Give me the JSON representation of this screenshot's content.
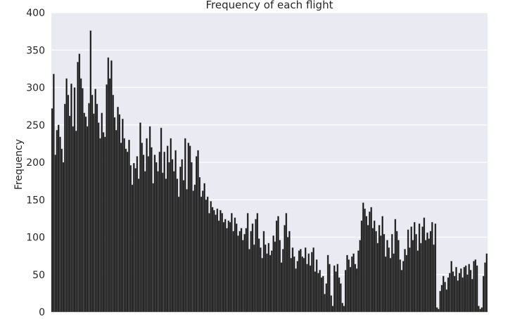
{
  "chart_data": {
    "type": "bar",
    "title": "Frequency of each flight",
    "xlabel": "",
    "ylabel": "Frequency",
    "ylim": [
      0,
      400
    ],
    "yticks": [
      0,
      50,
      100,
      150,
      200,
      250,
      300,
      350,
      400
    ],
    "xtick_labels": "none",
    "grid": "horizontal",
    "legend": "none",
    "colors": {
      "plot_background": "#EAEAF2",
      "grid": "#FFFFFF",
      "bar_fill": "#111111",
      "bar_edge": "#8C8C8C"
    },
    "series": [
      {
        "values": [
          272,
          318,
          210,
          243,
          250,
          234,
          218,
          200,
          278,
          312,
          290,
          262,
          305,
          248,
          300,
          242,
          334,
          345,
          312,
          299,
          266,
          261,
          248,
          279,
          376,
          290,
          265,
          298,
          278,
          253,
          232,
          266,
          240,
          234,
          304,
          340,
          312,
          336,
          290,
          260,
          243,
          274,
          264,
          226,
          258,
          232,
          218,
          214,
          230,
          196,
          170,
          199,
          192,
          208,
          178,
          253,
          226,
          210,
          188,
          232,
          208,
          248,
          220,
          172,
          210,
          200,
          188,
          214,
          246,
          186,
          214,
          178,
          222,
          200,
          232,
          204,
          188,
          216,
          178,
          154,
          194,
          204,
          176,
          232,
          164,
          226,
          222,
          200,
          162,
          170,
          208,
          216,
          180,
          154,
          162,
          172,
          150,
          154,
          132,
          148,
          140,
          136,
          130,
          138,
          122,
          136,
          132,
          120,
          124,
          112,
          122,
          120,
          132,
          108,
          126,
          118,
          102,
          108,
          112,
          96,
          104,
          112,
          132,
          84,
          108,
          118,
          90,
          124,
          132,
          98,
          86,
          72,
          108,
          90,
          78,
          92,
          76,
          82,
          102,
          94,
          122,
          128,
          96,
          66,
          84,
          116,
          132,
          100,
          108,
          72,
          86,
          74,
          58,
          68,
          82,
          84,
          74,
          72,
          86,
          64,
          78,
          62,
          80,
          86,
          54,
          70,
          52,
          56,
          46,
          48,
          24,
          38,
          76,
          64,
          22,
          8,
          62,
          54,
          64,
          46,
          38,
          12,
          8,
          56,
          76,
          70,
          60,
          74,
          78,
          64,
          58,
          82,
          96,
          122,
          146,
          138,
          128,
          116,
          134,
          140,
          112,
          122,
          108,
          92,
          116,
          102,
          128,
          104,
          74,
          96,
          86,
          72,
          104,
          78,
          124,
          108,
          96,
          70,
          56,
          68,
          84,
          76,
          110,
          86,
          114,
          96,
          120,
          104,
          82,
          118,
          92,
          114,
          126,
          96,
          106,
          98,
          108,
          120,
          90,
          118,
          6,
          4,
          28,
          36,
          48,
          40,
          30,
          46,
          52,
          68,
          54,
          48,
          60,
          42,
          52,
          58,
          46,
          60,
          62,
          50,
          64,
          56,
          44,
          68,
          70,
          62,
          8,
          4,
          6,
          48,
          66,
          78
        ]
      }
    ]
  }
}
